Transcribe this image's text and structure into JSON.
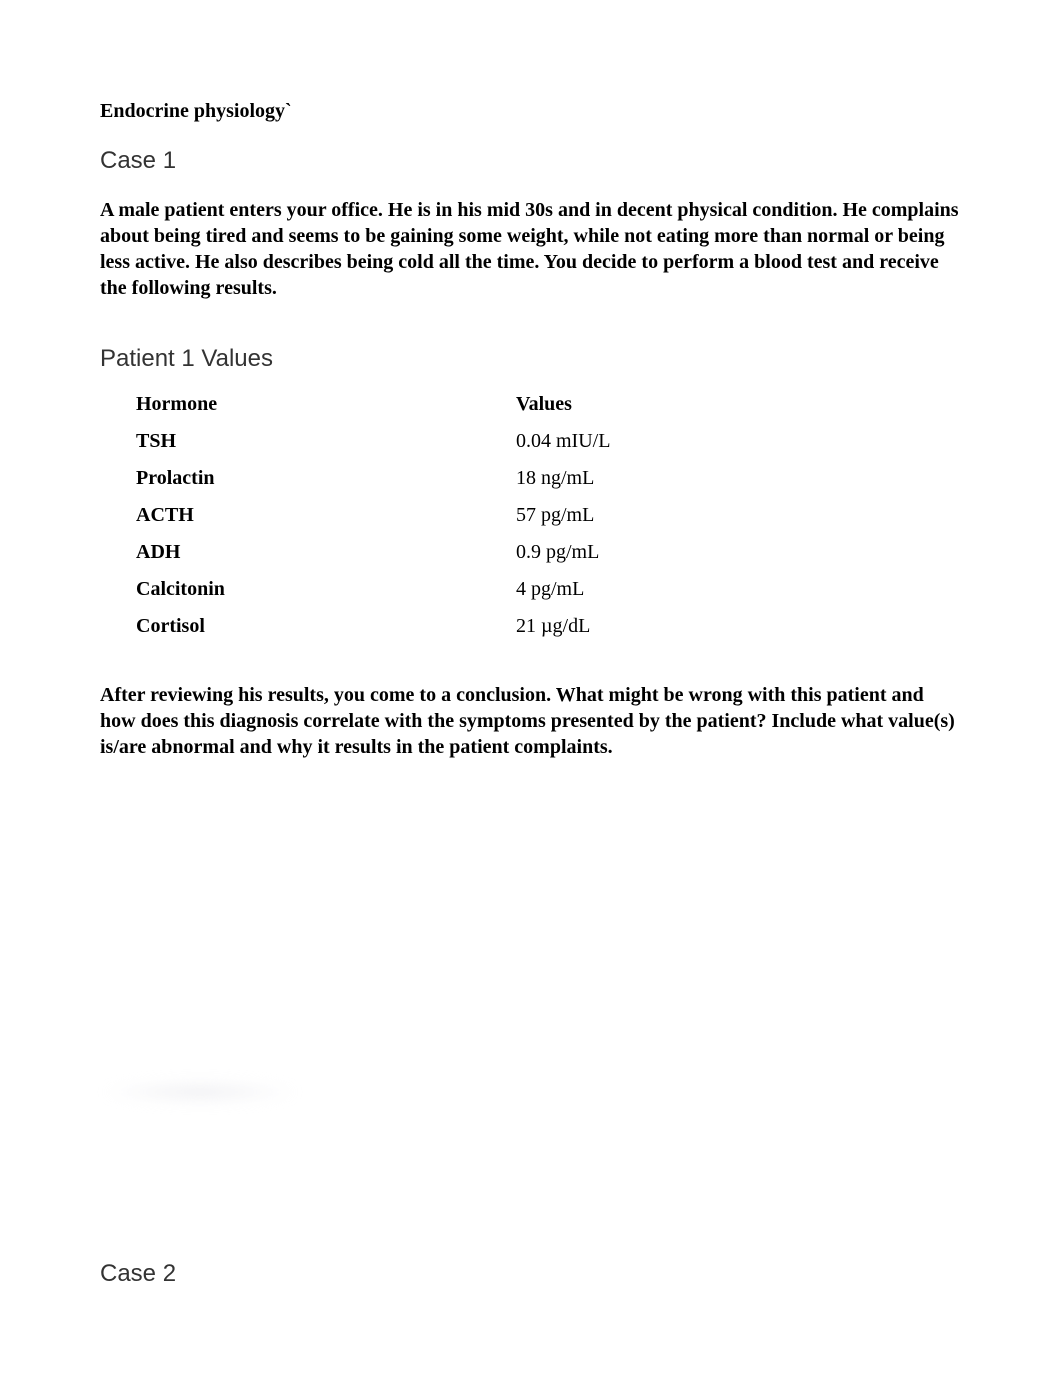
{
  "doc_title": "Endocrine physiology`",
  "case1": {
    "heading": "Case 1",
    "body": "A male patient enters your office. He is in his mid 30s and in decent physical condition. He complains about being tired and seems to be gaining some weight, while not eating more than normal or being less active. He also describes being cold all the time. You decide to perform a blood test and receive the following results.",
    "table_heading": "Patient 1 Values",
    "table": {
      "header": {
        "hormone": "Hormone",
        "values": "Values"
      },
      "rows": [
        {
          "hormone": "TSH",
          "value": "0.04 mIU/L"
        },
        {
          "hormone": "Prolactin",
          "value": "18 ng/mL"
        },
        {
          "hormone": "ACTH",
          "value": "57 pg/mL"
        },
        {
          "hormone": "ADH",
          "value": "0.9 pg/mL"
        },
        {
          "hormone": "Calcitonin",
          "value": "4 pg/mL"
        },
        {
          "hormone": "Cortisol",
          "value": "21 µg/dL"
        }
      ]
    },
    "conclusion": "After reviewing his results, you come to a conclusion. What might be wrong with this patient and how does this diagnosis correlate with the symptoms presented by the patient? Include what value(s) is/are abnormal and why it results in the patient complaints."
  },
  "case2": {
    "heading": "Case 2"
  },
  "style": {
    "body_font": "Times New Roman",
    "heading_font": "Verdana",
    "text_color": "#000000",
    "heading_color": "#333333",
    "background": "#ffffff",
    "body_fontsize": 20,
    "heading_fontsize": 24
  }
}
